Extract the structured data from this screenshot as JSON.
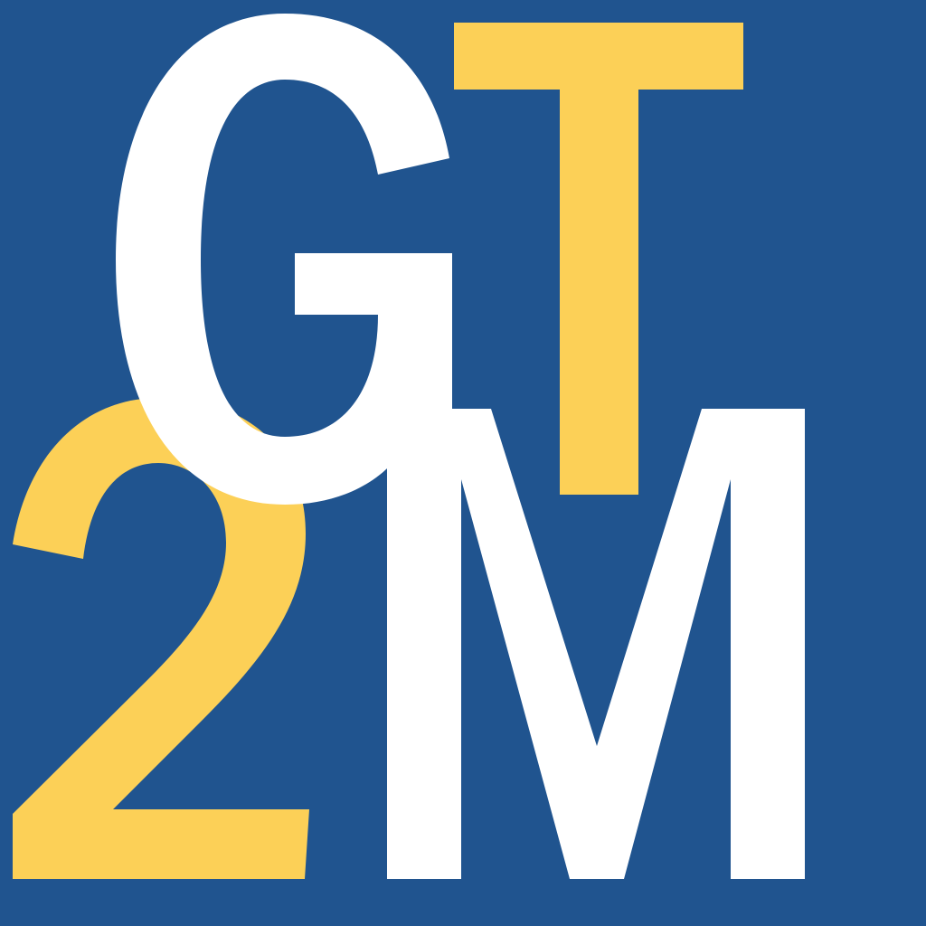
{
  "logo": {
    "name": "GT2M",
    "letters": [
      {
        "char": "G",
        "color": "#FFFFFF"
      },
      {
        "char": "T",
        "color": "#FCD057"
      },
      {
        "char": "2",
        "color": "#FCD057"
      },
      {
        "char": "M",
        "color": "#FFFFFF"
      }
    ]
  },
  "colors": {
    "background": "#20548F",
    "white": "#FFFFFF",
    "yellow": "#FCD057"
  }
}
